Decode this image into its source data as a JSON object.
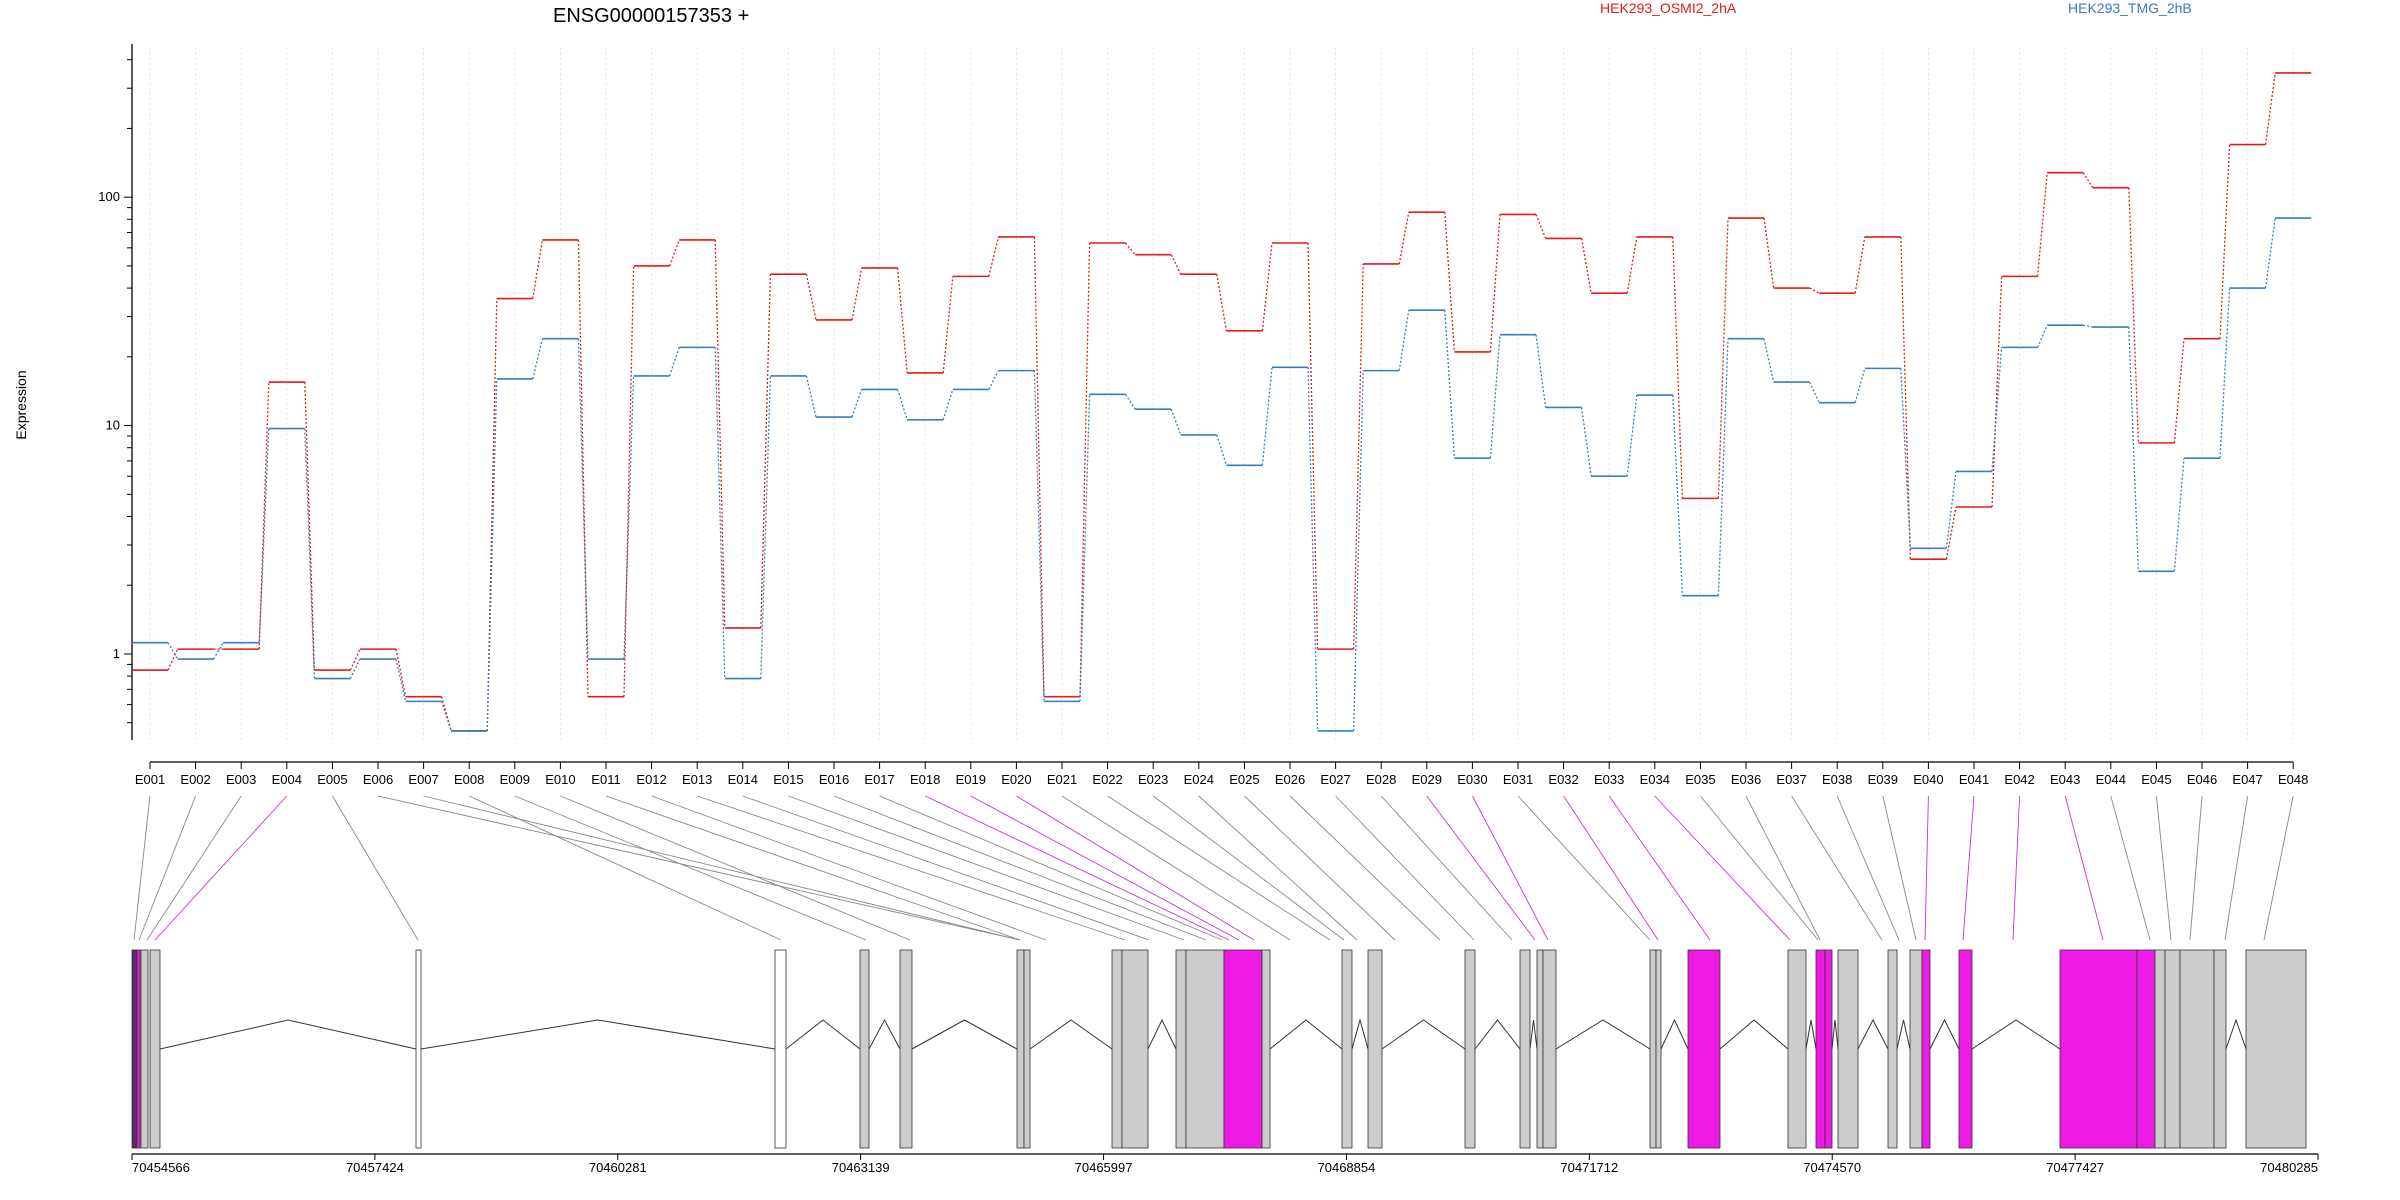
{
  "chart_data": {
    "type": "line",
    "title": "ENSG00000157353 +",
    "ylabel": "Expression",
    "xlabel": "",
    "yscale": "log",
    "ylim": [
      0.42,
      450
    ],
    "yticks": [
      1,
      10,
      100
    ],
    "legend_placement": "top",
    "grid": "vertical dotted",
    "categories": [
      "E001",
      "E002",
      "E003",
      "E004",
      "E005",
      "E006",
      "E007",
      "E008",
      "E009",
      "E010",
      "E011",
      "E012",
      "E013",
      "E014",
      "E015",
      "E016",
      "E017",
      "E018",
      "E019",
      "E020",
      "E021",
      "E022",
      "E023",
      "E024",
      "E025",
      "E026",
      "E027",
      "E028",
      "E029",
      "E030",
      "E031",
      "E032",
      "E033",
      "E034",
      "E035",
      "E036",
      "E037",
      "E038",
      "E039",
      "E040",
      "E041",
      "E042",
      "E043",
      "E044",
      "E045",
      "E046",
      "E047",
      "E048"
    ],
    "series": [
      {
        "name": "HEK293_OSMI2_2hA",
        "color": "#e31a1c",
        "values": [
          0.85,
          1.05,
          1.05,
          15.5,
          0.85,
          1.05,
          0.65,
          0.46,
          36,
          65,
          0.65,
          50,
          65,
          1.3,
          46,
          29,
          49,
          17,
          45,
          67,
          0.65,
          63,
          56,
          46,
          26,
          63,
          1.05,
          51,
          86,
          21,
          84,
          66,
          38,
          67,
          4.8,
          81,
          40,
          38,
          67,
          2.6,
          4.4,
          45,
          128,
          110,
          8.4,
          24,
          170,
          350
        ]
      },
      {
        "name": "HEK293_TMG_2hB",
        "color": "#3a7bbf",
        "values": [
          1.12,
          0.95,
          1.12,
          9.7,
          0.78,
          0.95,
          0.62,
          0.46,
          16,
          24,
          0.95,
          16.5,
          22,
          0.78,
          16.5,
          10.9,
          14.4,
          10.6,
          14.4,
          17.4,
          0.62,
          13.7,
          11.8,
          9.1,
          6.7,
          18,
          0.46,
          17.4,
          32,
          7.2,
          25,
          12,
          6,
          13.6,
          1.8,
          24,
          15.5,
          12.6,
          17.8,
          2.9,
          6.3,
          22,
          27.5,
          27,
          2.3,
          7.2,
          40,
          81
        ]
      }
    ],
    "gene_track": {
      "coordinate_ticks": [
        "70454566",
        "70457424",
        "70460281",
        "70463139",
        "70465997",
        "70468854",
        "70471712",
        "70474570",
        "70477427",
        "70480285"
      ],
      "fill_normal": "#cccccc",
      "fill_highlight": "#ee1ae6",
      "fill_start": "#5b2a6e",
      "connector_normal": "#888888",
      "connector_highlight": "#cc33cc"
    }
  }
}
